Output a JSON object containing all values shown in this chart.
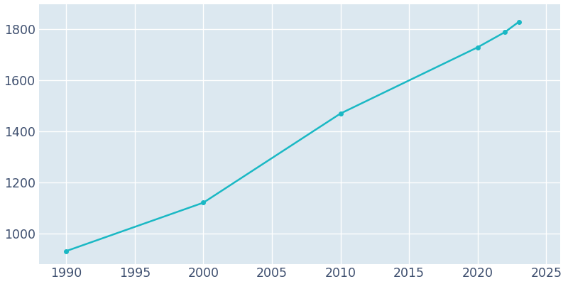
{
  "years": [
    1990,
    2000,
    2010,
    2020,
    2022,
    2023
  ],
  "population": [
    930,
    1120,
    1470,
    1730,
    1790,
    1830
  ],
  "line_color": "#1ab8c4",
  "marker": "o",
  "marker_size": 4,
  "line_width": 1.8,
  "plot_bg_color": "#dce8f0",
  "fig_bg_color": "#ffffff",
  "grid_color": "#ffffff",
  "xlim": [
    1988,
    2026
  ],
  "ylim": [
    880,
    1900
  ],
  "xticks": [
    1990,
    1995,
    2000,
    2005,
    2010,
    2015,
    2020,
    2025
  ],
  "yticks": [
    1000,
    1200,
    1400,
    1600,
    1800
  ],
  "tick_color": "#3d4e6e",
  "tick_fontsize": 12.5
}
